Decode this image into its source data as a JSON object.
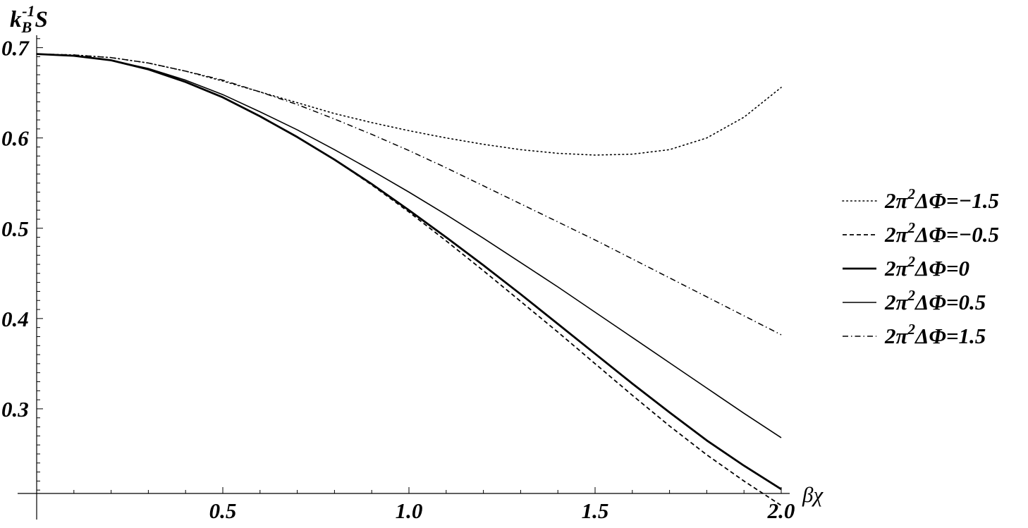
{
  "chart_data": {
    "type": "line",
    "ylabel_main": "k",
    "ylabel_sub": "B",
    "ylabel_sup": "-1",
    "ylabel_tail": "S",
    "xlabel": "βχ",
    "xlim": [
      0,
      2.0
    ],
    "ylim": [
      0.2,
      0.72
    ],
    "x_ticks": [
      {
        "value": 0.5,
        "label": "0.5"
      },
      {
        "value": 1.0,
        "label": "1.0"
      },
      {
        "value": 1.5,
        "label": "1.5"
      },
      {
        "value": 2.0,
        "label": "2.0"
      }
    ],
    "y_ticks": [
      {
        "value": 0.3,
        "label": "0.3"
      },
      {
        "value": 0.4,
        "label": "0.4"
      },
      {
        "value": 0.5,
        "label": "0.5"
      },
      {
        "value": 0.6,
        "label": "0.6"
      },
      {
        "value": 0.7,
        "label": "0.7"
      }
    ],
    "grid": false,
    "legend_position": "right",
    "x": [
      0,
      0.1,
      0.2,
      0.3,
      0.4,
      0.5,
      0.6,
      0.7,
      0.8,
      0.9,
      1.0,
      1.1,
      1.2,
      1.3,
      1.4,
      1.5,
      1.6,
      1.7,
      1.8,
      1.9,
      2.0
    ],
    "series": [
      {
        "name": "2π²ΔΦ=−1.5",
        "legend_pre": "2π",
        "legend_sup": "2",
        "legend_post": "ΔΦ=−1.5",
        "style": "dotted",
        "values": [
          0.693,
          0.692,
          0.689,
          0.683,
          0.674,
          0.663,
          0.651,
          0.639,
          0.627,
          0.617,
          0.608,
          0.6,
          0.593,
          0.587,
          0.583,
          0.581,
          0.582,
          0.587,
          0.6,
          0.623,
          0.656
        ]
      },
      {
        "name": "2π²ΔΦ=−0.5",
        "legend_pre": "2π",
        "legend_sup": "2",
        "legend_post": "ΔΦ=−0.5",
        "style": "dashed",
        "values": [
          0.693,
          0.691,
          0.686,
          0.676,
          0.662,
          0.645,
          0.624,
          0.601,
          0.576,
          0.548,
          0.518,
          0.486,
          0.453,
          0.419,
          0.385,
          0.35,
          0.315,
          0.281,
          0.249,
          0.22,
          0.193
        ]
      },
      {
        "name": "2π²ΔΦ=0",
        "legend_pre": "2π",
        "legend_sup": "2",
        "legend_post": "ΔΦ=0",
        "style": "solid-thick",
        "values": [
          0.693,
          0.691,
          0.686,
          0.676,
          0.662,
          0.645,
          0.624,
          0.601,
          0.576,
          0.549,
          0.52,
          0.49,
          0.459,
          0.427,
          0.394,
          0.361,
          0.328,
          0.296,
          0.265,
          0.237,
          0.211
        ]
      },
      {
        "name": "2π²ΔΦ=0.5",
        "legend_pre": "2π",
        "legend_sup": "2",
        "legend_post": "ΔΦ=0.5",
        "style": "solid",
        "values": [
          0.693,
          0.691,
          0.686,
          0.677,
          0.664,
          0.648,
          0.629,
          0.609,
          0.587,
          0.564,
          0.54,
          0.515,
          0.489,
          0.462,
          0.435,
          0.407,
          0.379,
          0.351,
          0.323,
          0.295,
          0.268
        ]
      },
      {
        "name": "2π²ΔΦ=1.5",
        "legend_pre": "2π",
        "legend_sup": "2",
        "legend_post": "ΔΦ=1.5",
        "style": "dashdot",
        "values": [
          0.693,
          0.692,
          0.689,
          0.683,
          0.674,
          0.664,
          0.651,
          0.637,
          0.621,
          0.604,
          0.586,
          0.567,
          0.547,
          0.527,
          0.507,
          0.487,
          0.466,
          0.445,
          0.424,
          0.403,
          0.382
        ]
      }
    ]
  }
}
